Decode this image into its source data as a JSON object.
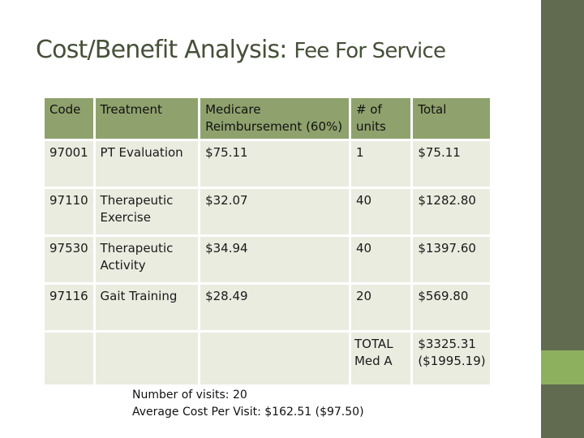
{
  "slide": {
    "title": "Cost/Benefit Analysis:",
    "subtitle": "Fee For Service"
  },
  "colors": {
    "header_fill": "#8fa26d",
    "cell_fill": "#e9ecdf",
    "band": "#606b4f",
    "band_accent": "#8db05e",
    "title_text": "#46503a"
  },
  "table": {
    "headers": [
      "Code",
      "Treatment",
      "Medicare Reimbursement (60%)",
      "# of units",
      "Total"
    ],
    "rows": [
      [
        "97001",
        "PT Evaluation",
        "$75.11",
        "1",
        "$75.11"
      ],
      [
        "97110",
        "Therapeutic Exercise",
        "$32.07",
        "40",
        "$1282.80"
      ],
      [
        "97530",
        "Therapeutic Activity",
        "$34.94",
        "40",
        "$1397.60"
      ],
      [
        "97116",
        "Gait Training",
        "$28.49",
        "20",
        "$569.80"
      ]
    ],
    "total_label": "TOTAL Med A",
    "total_value": "$3325.31 ($1995.19)"
  },
  "notes": {
    "visits": "Number of visits: 20",
    "average_cost": "Average Cost Per Visit: $162.51 ($97.50)"
  }
}
